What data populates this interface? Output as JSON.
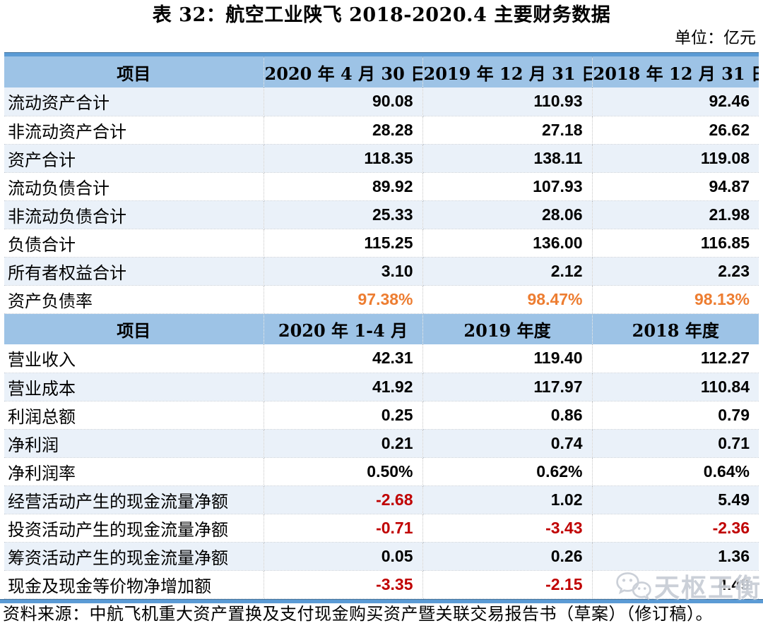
{
  "page": {
    "title": "表 32：航空工业陕飞 2018-2020.4 主要财务数据",
    "unit_note": "单位：亿元",
    "source_note": "资料来源：中航飞机重大资产置换及支付现金购买资产暨关联交易报告书（草案）（修订稿）。"
  },
  "watermark": {
    "text": "天枢王衡",
    "icon": "wechat-icon"
  },
  "colors": {
    "header_top_stripe": "#5B9BD5",
    "header_bg": "#9DC3E6",
    "row_alt_bg": "#EAF1F9",
    "table_bottom_rule": "#5B9BD5",
    "highlight_orange": "#ED7D31",
    "negative_red": "#C00000"
  },
  "table": {
    "sections": [
      {
        "header": [
          "项目",
          "2020 年 4 月 30 日",
          "2019 年 12 月 31 日",
          "2018 年 12 月 31 日"
        ],
        "rows": [
          {
            "label": "流动资产合计",
            "values": [
              "90.08",
              "110.93",
              "92.46"
            ]
          },
          {
            "label": "非流动资产合计",
            "values": [
              "28.28",
              "27.18",
              "26.62"
            ]
          },
          {
            "label": "资产合计",
            "values": [
              "118.35",
              "138.11",
              "119.08"
            ]
          },
          {
            "label": "流动负债合计",
            "values": [
              "89.92",
              "107.93",
              "94.87"
            ]
          },
          {
            "label": "非流动负债合计",
            "values": [
              "25.33",
              "28.06",
              "21.98"
            ]
          },
          {
            "label": "负债合计",
            "values": [
              "115.25",
              "136.00",
              "116.85"
            ]
          },
          {
            "label": "所有者权益合计",
            "values": [
              "3.10",
              "2.12",
              "2.23"
            ]
          },
          {
            "label": "资产负债率",
            "values": [
              "97.38%",
              "98.47%",
              "98.13%"
            ],
            "highlight": "orange"
          }
        ]
      },
      {
        "header": [
          "项目",
          "2020 年 1-4 月",
          "2019 年度",
          "2018 年度"
        ],
        "rows": [
          {
            "label": "营业收入",
            "values": [
              "42.31",
              "119.40",
              "112.27"
            ]
          },
          {
            "label": "营业成本",
            "values": [
              "41.92",
              "117.97",
              "110.84"
            ]
          },
          {
            "label": "利润总额",
            "values": [
              "0.25",
              "0.86",
              "0.79"
            ]
          },
          {
            "label": "净利润",
            "values": [
              "0.21",
              "0.74",
              "0.71"
            ]
          },
          {
            "label": "净利润率",
            "values": [
              "0.50%",
              "0.62%",
              "0.64%"
            ]
          },
          {
            "label": "经营活动产生的现金流量净额",
            "values": [
              "-2.68",
              "1.02",
              "5.49"
            ]
          },
          {
            "label": "投资活动产生的现金流量净额",
            "values": [
              "-0.71",
              "-3.43",
              "-2.36"
            ]
          },
          {
            "label": "筹资活动产生的现金流量净额",
            "values": [
              "0.05",
              "0.26",
              "1.36"
            ]
          },
          {
            "label": "现金及现金等价物净增加额",
            "values": [
              "-3.35",
              "-2.15",
              "4.49"
            ]
          }
        ]
      }
    ]
  }
}
